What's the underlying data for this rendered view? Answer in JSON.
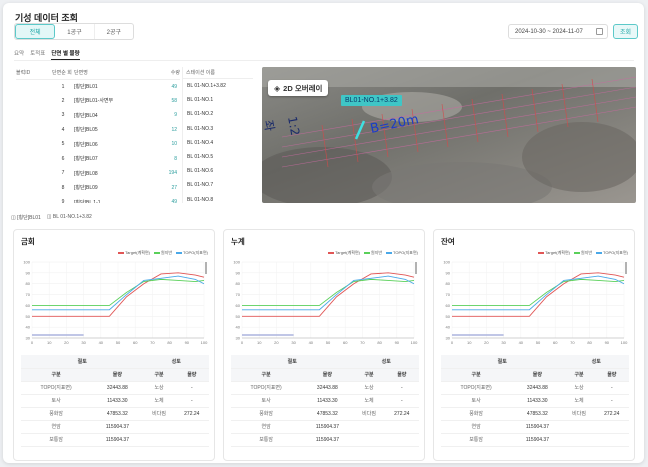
{
  "page": {
    "title": "기성 데이터 조회"
  },
  "filters": {
    "buttons": [
      "전체",
      "1공구",
      "2공구"
    ],
    "active": 0
  },
  "date_range": "2024-10-30 ~ 2024-11-07",
  "search_label": "조회",
  "tabs": [
    "요약",
    "토적표",
    "단면 별 물량"
  ],
  "active_tab": 2,
  "table": {
    "headers": [
      "블럭ID",
      "단면순 회",
      "단면명",
      "수량"
    ],
    "rows": [
      {
        "no": "1",
        "name": "[횡단]BL01",
        "qty": "49"
      },
      {
        "no": "2",
        "name": "[횡단]BL01-사면부",
        "qty": "58"
      },
      {
        "no": "3",
        "name": "[횡단]BL04",
        "qty": "9"
      },
      {
        "no": "4",
        "name": "[횡단]BL05",
        "qty": "12"
      },
      {
        "no": "5",
        "name": "[횡단]BL06",
        "qty": "10"
      },
      {
        "no": "6",
        "name": "[횡단]BL07",
        "qty": "8"
      },
      {
        "no": "7",
        "name": "[횡단]BL08",
        "qty": "194"
      },
      {
        "no": "8",
        "name": "[횡단]BL09",
        "qty": "27"
      },
      {
        "no": "9",
        "name": "[횡단]BL 1-1",
        "qty": "49"
      }
    ]
  },
  "station_list": {
    "header": "스테이션 이름",
    "items": [
      "BL 01-NO.1+3.82",
      "BL 01-NO.1",
      "BL 01-NO.2",
      "BL 01-NO.3",
      "BL 01-NO.4",
      "BL 01-NO.5",
      "BL 01-NO.6",
      "BL 01-NO.7",
      "BL 01-NO.8"
    ]
  },
  "map": {
    "overlay_label": "2D 오버레이",
    "tag": "BL01-NO.1+3.82",
    "label_b": "B=20m",
    "label_slope": "1:2",
    "label_side": "좌"
  },
  "breadcrumb": [
    "[횡단]BL01",
    "BL 01-NO.1+3.82"
  ],
  "legend": [
    "Target(계획면)",
    "원지반",
    "TOPO(지표면)"
  ],
  "colors": {
    "target": "#e05555",
    "ground": "#5ad05a",
    "topo": "#4aa8e8",
    "accent": "#1aa5a5"
  },
  "x_ticks": [
    "0",
    "10",
    "20",
    "30",
    "40",
    "50",
    "60",
    "70",
    "80",
    "90",
    "100"
  ],
  "y_ticks": [
    "100",
    "90",
    "80",
    "70",
    "60",
    "50",
    "40",
    "30"
  ],
  "cards": [
    {
      "title": "금회"
    },
    {
      "title": "누계"
    },
    {
      "title": "잔여"
    }
  ],
  "summary": {
    "head_left": "절토",
    "head_right": "성토",
    "sub": [
      "구분",
      "물량",
      "구분",
      "물량"
    ],
    "rows": [
      [
        "TOPO(지표면)",
        "32443.88",
        "노상",
        "-"
      ],
      [
        "토사",
        "11433.30",
        "노체",
        "-"
      ],
      [
        "풍화암",
        "47853.32",
        "비다짐",
        "272.24"
      ],
      [
        "연암",
        "115904.37",
        "",
        ""
      ],
      [
        "보통암",
        "115904.37",
        "",
        ""
      ]
    ]
  },
  "chart_data": [
    {
      "type": "line",
      "title": "금회",
      "xlim": [
        0,
        100
      ],
      "ylim": [
        30,
        100
      ],
      "series": [
        {
          "name": "Target(계획면)",
          "x": [
            0,
            35,
            45,
            55,
            65,
            75,
            85,
            95,
            100
          ],
          "y": [
            50,
            50,
            50,
            68,
            80,
            89,
            90,
            88,
            86
          ]
        },
        {
          "name": "원지반",
          "x": [
            0,
            35,
            45,
            55,
            65,
            75,
            85,
            95,
            100
          ],
          "y": [
            60,
            60,
            60,
            72,
            82,
            84,
            83,
            82,
            83
          ]
        },
        {
          "name": "TOPO(지표면)",
          "x": [
            0,
            35,
            45,
            55,
            65,
            75,
            85,
            95,
            100
          ],
          "y": [
            56,
            56,
            56,
            70,
            83,
            85,
            87,
            84,
            80
          ]
        }
      ]
    },
    {
      "type": "line",
      "title": "누계",
      "xlim": [
        0,
        100
      ],
      "ylim": [
        30,
        100
      ],
      "series": [
        {
          "name": "Target(계획면)",
          "x": [
            0,
            35,
            45,
            55,
            65,
            75,
            85,
            95,
            100
          ],
          "y": [
            50,
            50,
            50,
            68,
            80,
            89,
            90,
            88,
            86
          ]
        },
        {
          "name": "원지반",
          "x": [
            0,
            35,
            45,
            55,
            65,
            75,
            85,
            95,
            100
          ],
          "y": [
            60,
            60,
            60,
            72,
            82,
            84,
            83,
            82,
            83
          ]
        },
        {
          "name": "TOPO(지표면)",
          "x": [
            0,
            35,
            45,
            55,
            65,
            75,
            85,
            95,
            100
          ],
          "y": [
            56,
            56,
            56,
            70,
            83,
            85,
            87,
            84,
            80
          ]
        }
      ]
    },
    {
      "type": "line",
      "title": "잔여",
      "xlim": [
        0,
        100
      ],
      "ylim": [
        30,
        100
      ],
      "series": [
        {
          "name": "Target(계획면)",
          "x": [
            0,
            35,
            45,
            55,
            65,
            75,
            85,
            95,
            100
          ],
          "y": [
            50,
            50,
            50,
            68,
            80,
            89,
            90,
            88,
            86
          ]
        },
        {
          "name": "원지반",
          "x": [
            0,
            35,
            45,
            55,
            65,
            75,
            85,
            95,
            100
          ],
          "y": [
            60,
            60,
            60,
            72,
            82,
            84,
            83,
            82,
            83
          ]
        },
        {
          "name": "TOPO(지표면)",
          "x": [
            0,
            35,
            45,
            55,
            65,
            75,
            85,
            95,
            100
          ],
          "y": [
            56,
            56,
            56,
            70,
            83,
            85,
            87,
            84,
            80
          ]
        }
      ]
    }
  ]
}
